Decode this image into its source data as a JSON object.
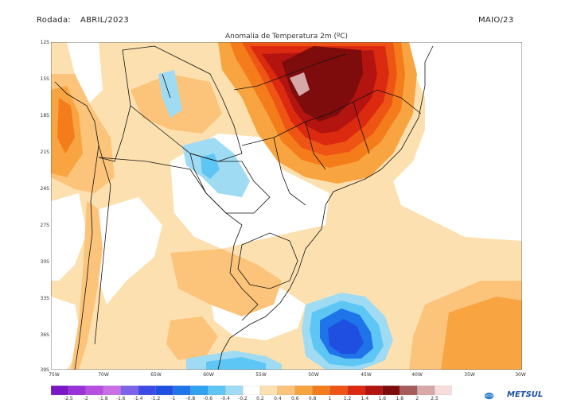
{
  "header": {
    "left_label": "Rodada:",
    "run": "ABRIL/2023",
    "right_label": "MAIO/23"
  },
  "map": {
    "title": "Anomalia de Temperatura 2m (ºC)",
    "lat_labels": [
      "12S",
      "15S",
      "18S",
      "21S",
      "24S",
      "27S",
      "30S",
      "33S",
      "36S",
      "39S"
    ],
    "lon_labels": [
      "75W",
      "70W",
      "65W",
      "60W",
      "55W",
      "50W",
      "45W",
      "40W",
      "35W",
      "30W"
    ]
  },
  "colorbar": {
    "ticks": [
      "-2.5",
      "-2",
      "-1.8",
      "-1.6",
      "-1.4",
      "-1.2",
      "-1",
      "-0.8",
      "-0.6",
      "-0.4",
      "-0.2",
      "0.2",
      "0.4",
      "0.6",
      "0.8",
      "1",
      "1.2",
      "1.4",
      "1.6",
      "1.8",
      "2",
      "2.5"
    ],
    "colors": [
      "#7a18c8",
      "#9a30d8",
      "#b64ee0",
      "#c86fe6",
      "#7e62e8",
      "#3d4be6",
      "#1f4fe0",
      "#1f74ea",
      "#2fa2f2",
      "#5ec6f4",
      "#9fdcf4",
      "#ffffff",
      "#fde0b0",
      "#fcc47a",
      "#f8a440",
      "#f47c1a",
      "#ee5414",
      "#dc2a10",
      "#b41410",
      "#7e0c0c",
      "#a65a5a",
      "#d6a8a8",
      "#f6dede"
    ]
  },
  "logo": {
    "name": "METSUL",
    "icon": "globe-logo-icon"
  }
}
